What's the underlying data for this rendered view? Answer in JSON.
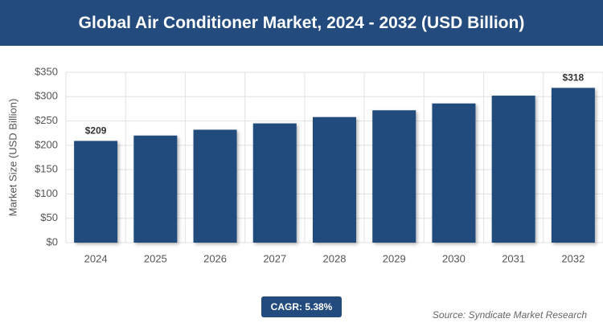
{
  "chart_data": {
    "type": "bar",
    "title": "Global Air Conditioner Market, 2024 - 2032 (USD Billion)",
    "y_label": "Market Size (USD Billion)",
    "categories": [
      "2024",
      "2025",
      "2026",
      "2027",
      "2028",
      "2029",
      "2030",
      "2031",
      "2032"
    ],
    "values": [
      209,
      220,
      232,
      245,
      258,
      272,
      286,
      302,
      318
    ],
    "value_labels": [
      "$209",
      null,
      null,
      null,
      null,
      null,
      null,
      null,
      "$318"
    ],
    "color": "#234b7d",
    "ylim": [
      0,
      350
    ],
    "yticks": [
      {
        "value": 0,
        "label": "$0"
      },
      {
        "value": 50,
        "label": "$50"
      },
      {
        "value": 100,
        "label": "$100"
      },
      {
        "value": 150,
        "label": "$150"
      },
      {
        "value": 200,
        "label": "$200"
      },
      {
        "value": 250,
        "label": "$250"
      },
      {
        "value": 300,
        "label": "$300"
      },
      {
        "value": 350,
        "label": "$350"
      }
    ],
    "grid": true,
    "annotation": "CAGR: 5.38%",
    "source": "Source: Syndicate Market Research"
  }
}
